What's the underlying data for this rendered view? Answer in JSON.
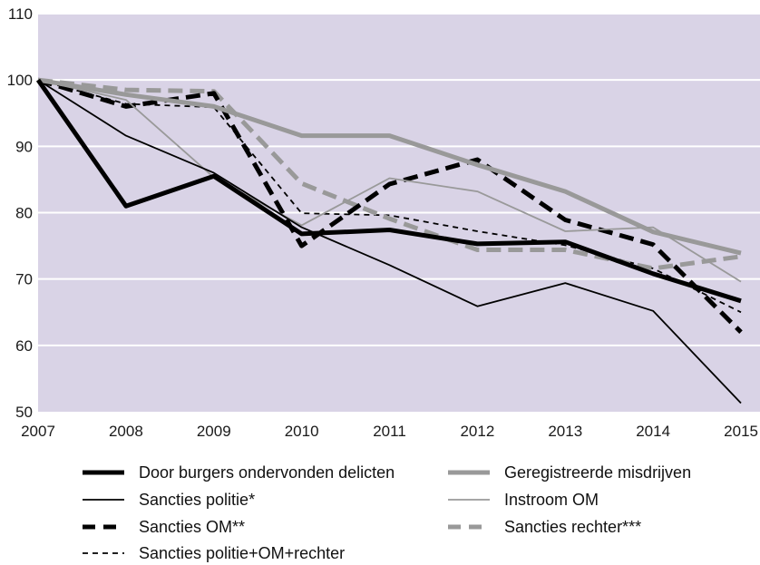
{
  "chart_data": {
    "type": "line",
    "title": "",
    "xlabel": "",
    "ylabel": "",
    "x": [
      2007,
      2008,
      2009,
      2010,
      2011,
      2012,
      2013,
      2014,
      2015
    ],
    "x_tick_labels": [
      "2007",
      "2008",
      "2009",
      "2010",
      "2011",
      "2012",
      "2013",
      "2014",
      "2015"
    ],
    "ylim": [
      50,
      110
    ],
    "y_ticks": [
      50,
      60,
      70,
      80,
      90,
      100,
      110
    ],
    "y_tick_labels": [
      "50",
      "60",
      "70",
      "80",
      "90",
      "100",
      "110"
    ],
    "grid": "horizontal",
    "legend_position": "bottom",
    "colors": {
      "plot_background": "#d9d3e6",
      "gridline": "#ffffff",
      "black": "#000000",
      "gray": "#999999"
    },
    "series": [
      {
        "name": "Door burgers ondervonden delicten",
        "color": "#000000",
        "style": "thick-solid",
        "values": [
          100,
          81,
          85.5,
          76.8,
          77.4,
          75.3,
          75.6,
          70.8,
          66.7
        ]
      },
      {
        "name": "Geregistreerde misdrijven",
        "color": "#999999",
        "style": "thick-solid",
        "values": [
          100,
          97.8,
          96,
          91.6,
          91.6,
          87.2,
          83.2,
          77.1,
          73.9
        ]
      },
      {
        "name": "Sancties politie*",
        "color": "#000000",
        "style": "thin-solid",
        "values": [
          100,
          91.6,
          86,
          77.8,
          72.1,
          65.9,
          69.4,
          65.2,
          51.3
        ]
      },
      {
        "name": "Instroom OM",
        "color": "#999999",
        "style": "thin-solid",
        "values": [
          100,
          97,
          85.3,
          78.1,
          85.2,
          83.2,
          77.2,
          77.8,
          69.6
        ]
      },
      {
        "name": "Sancties OM**",
        "color": "#000000",
        "style": "thick-dash",
        "values": [
          100,
          96,
          98,
          75,
          84.3,
          88,
          78.9,
          75.2,
          62
        ]
      },
      {
        "name": "Sancties rechter***",
        "color": "#999999",
        "style": "thick-dash",
        "values": [
          100,
          98.5,
          98.3,
          84.4,
          79.1,
          74.4,
          74.4,
          71.6,
          73.4
        ]
      },
      {
        "name": "Sancties politie+OM+rechter",
        "color": "#000000",
        "style": "thin-dash",
        "values": [
          100,
          96.4,
          95.9,
          79.9,
          79.6,
          77.2,
          75.1,
          71.6,
          65
        ]
      }
    ]
  }
}
